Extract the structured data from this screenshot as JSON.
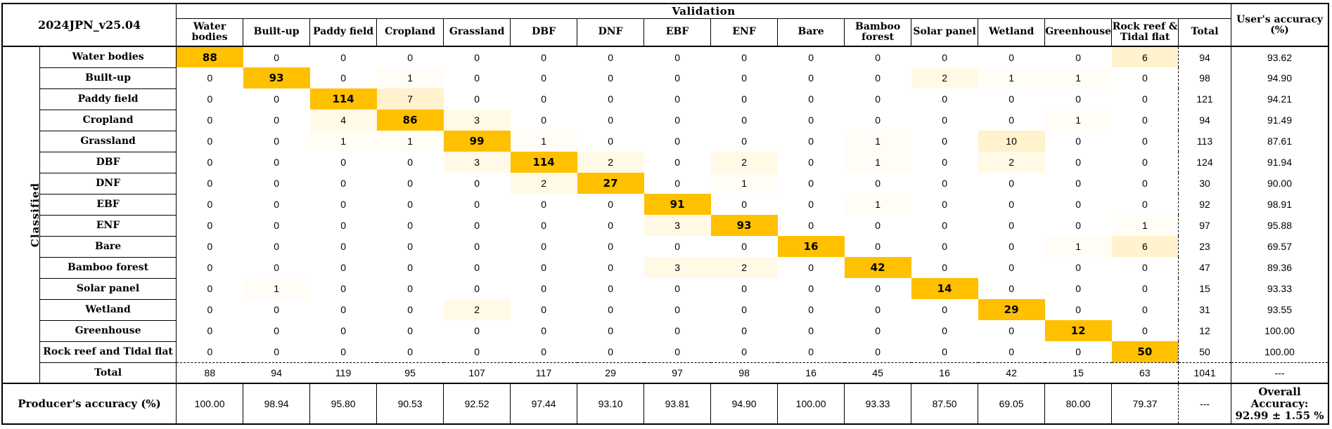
{
  "title": "2024JPN_v25.04",
  "validation_label": "Validation",
  "classified_label": "Classified",
  "columns": [
    "Water bodies",
    "Built-up",
    "Paddy field",
    "Cropland",
    "Grassland",
    "DBF",
    "DNF",
    "EBF",
    "ENF",
    "Bare",
    "Bamboo forest",
    "Solar panel",
    "Wetland",
    "Greenhouse",
    "Rock reef & Tidal flat"
  ],
  "total_label": "Total",
  "users_accuracy_label": "User's accuracy (%)",
  "producers_accuracy_label": "Producer's accuracy (%)",
  "rows": [
    {
      "label": "Water bodies",
      "values": [
        88,
        0,
        0,
        0,
        0,
        0,
        0,
        0,
        0,
        0,
        0,
        0,
        0,
        0,
        6
      ],
      "total": "94",
      "ua": "93.62"
    },
    {
      "label": "Built-up",
      "values": [
        0,
        93,
        0,
        1,
        0,
        0,
        0,
        0,
        0,
        0,
        0,
        2,
        1,
        1,
        0
      ],
      "total": "98",
      "ua": "94.90"
    },
    {
      "label": "Paddy field",
      "values": [
        0,
        0,
        114,
        7,
        0,
        0,
        0,
        0,
        0,
        0,
        0,
        0,
        0,
        0,
        0
      ],
      "total": "121",
      "ua": "94.21"
    },
    {
      "label": "Cropland",
      "values": [
        0,
        0,
        4,
        86,
        3,
        0,
        0,
        0,
        0,
        0,
        0,
        0,
        0,
        1,
        0
      ],
      "total": "94",
      "ua": "91.49"
    },
    {
      "label": "Grassland",
      "values": [
        0,
        0,
        1,
        1,
        99,
        1,
        0,
        0,
        0,
        0,
        1,
        0,
        10,
        0,
        0
      ],
      "total": "113",
      "ua": "87.61"
    },
    {
      "label": "DBF",
      "values": [
        0,
        0,
        0,
        0,
        3,
        114,
        2,
        0,
        2,
        0,
        1,
        0,
        2,
        0,
        0
      ],
      "total": "124",
      "ua": "91.94"
    },
    {
      "label": "DNF",
      "values": [
        0,
        0,
        0,
        0,
        0,
        2,
        27,
        0,
        1,
        0,
        0,
        0,
        0,
        0,
        0
      ],
      "total": "30",
      "ua": "90.00"
    },
    {
      "label": "EBF",
      "values": [
        0,
        0,
        0,
        0,
        0,
        0,
        0,
        91,
        0,
        0,
        1,
        0,
        0,
        0,
        0
      ],
      "total": "92",
      "ua": "98.91"
    },
    {
      "label": "ENF",
      "values": [
        0,
        0,
        0,
        0,
        0,
        0,
        0,
        3,
        93,
        0,
        0,
        0,
        0,
        0,
        1
      ],
      "total": "97",
      "ua": "95.88"
    },
    {
      "label": "Bare",
      "values": [
        0,
        0,
        0,
        0,
        0,
        0,
        0,
        0,
        0,
        16,
        0,
        0,
        0,
        1,
        6
      ],
      "total": "23",
      "ua": "69.57"
    },
    {
      "label": "Bamboo forest",
      "values": [
        0,
        0,
        0,
        0,
        0,
        0,
        0,
        3,
        2,
        0,
        42,
        0,
        0,
        0,
        0
      ],
      "total": "47",
      "ua": "89.36"
    },
    {
      "label": "Solar panel",
      "values": [
        0,
        1,
        0,
        0,
        0,
        0,
        0,
        0,
        0,
        0,
        0,
        14,
        0,
        0,
        0
      ],
      "total": "15",
      "ua": "93.33"
    },
    {
      "label": "Wetland",
      "values": [
        0,
        0,
        0,
        0,
        2,
        0,
        0,
        0,
        0,
        0,
        0,
        0,
        29,
        0,
        0
      ],
      "total": "31",
      "ua": "93.55"
    },
    {
      "label": "Greenhouse",
      "values": [
        0,
        0,
        0,
        0,
        0,
        0,
        0,
        0,
        0,
        0,
        0,
        0,
        0,
        12,
        0
      ],
      "total": "12",
      "ua": "100.00"
    },
    {
      "label": "Rock reef and Tidal flat",
      "values": [
        0,
        0,
        0,
        0,
        0,
        0,
        0,
        0,
        0,
        0,
        0,
        0,
        0,
        0,
        50
      ],
      "total": "50",
      "ua": "100.00"
    }
  ],
  "column_totals": [
    "88",
    "94",
    "119",
    "95",
    "107",
    "117",
    "29",
    "97",
    "98",
    "16",
    "45",
    "16",
    "42",
    "15",
    "63"
  ],
  "grand_total": "1041",
  "total_ua": "---",
  "producers_accuracy": [
    "100.00",
    "98.94",
    "95.80",
    "90.53",
    "92.52",
    "97.44",
    "93.10",
    "93.81",
    "94.90",
    "100.00",
    "93.33",
    "87.50",
    "69.05",
    "80.00",
    "79.37"
  ],
  "pa_total": "---",
  "overall_label": "Overall Accuracy:",
  "overall_value": "92.99 ± 1.55 %",
  "colors": {
    "diagonal": "#FFC000",
    "high_off": "#FFF2CC",
    "mid_off": "#FFF9E6",
    "low_off": "#FFFDF5"
  }
}
